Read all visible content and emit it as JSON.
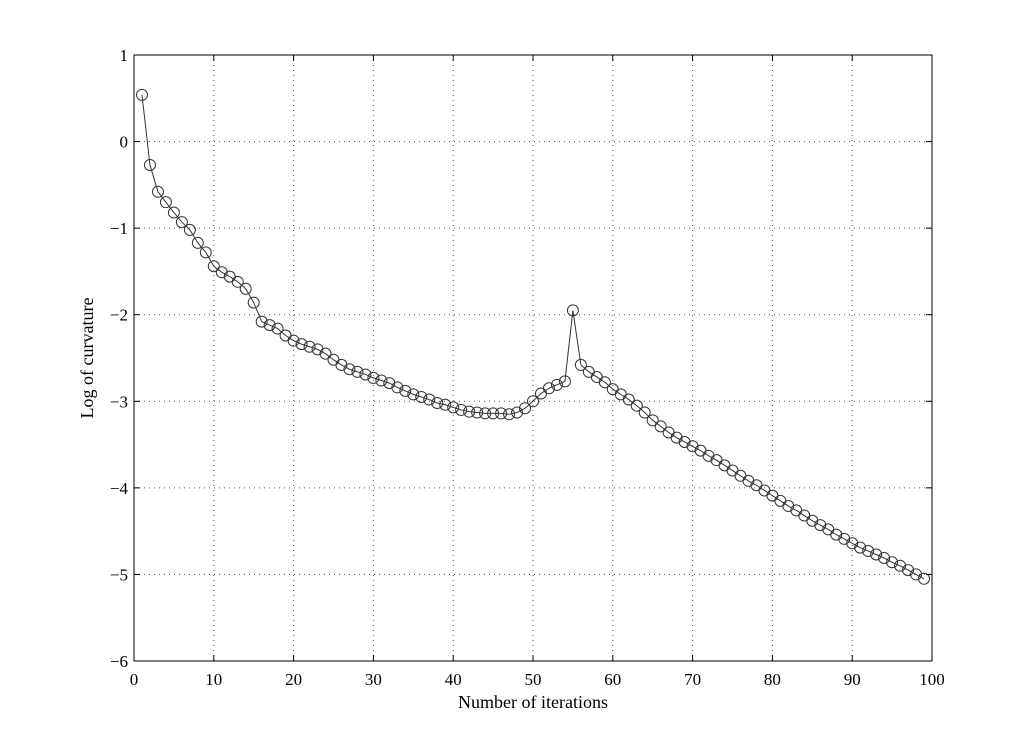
{
  "chart_data": {
    "type": "line",
    "title": "",
    "xlabel": "Number of iterations",
    "ylabel": "Log of curvature",
    "xlim": [
      0,
      100
    ],
    "ylim": [
      -6,
      1
    ],
    "xticks": [
      0,
      10,
      20,
      30,
      40,
      50,
      60,
      70,
      80,
      90,
      100
    ],
    "yticks": [
      1,
      0,
      -1,
      -2,
      -3,
      -4,
      -5,
      -6
    ],
    "xtick_labels": [
      "0",
      "10",
      "20",
      "30",
      "40",
      "50",
      "60",
      "70",
      "80",
      "90",
      "100"
    ],
    "ytick_labels": [
      "1",
      "0",
      "−1",
      "−2",
      "−3",
      "−4",
      "−5",
      "−6"
    ],
    "grid": "dotted",
    "marker": "open-circle",
    "line_color": "#333333",
    "x": [
      1,
      2,
      3,
      4,
      5,
      6,
      7,
      8,
      9,
      10,
      11,
      12,
      13,
      14,
      15,
      16,
      17,
      18,
      19,
      20,
      21,
      22,
      23,
      24,
      25,
      26,
      27,
      28,
      29,
      30,
      31,
      32,
      33,
      34,
      35,
      36,
      37,
      38,
      39,
      40,
      41,
      42,
      43,
      44,
      45,
      46,
      47,
      48,
      49,
      50,
      51,
      52,
      53,
      54,
      55,
      56,
      57,
      58,
      59,
      60,
      61,
      62,
      63,
      64,
      65,
      66,
      67,
      68,
      69,
      70,
      71,
      72,
      73,
      74,
      75,
      76,
      77,
      78,
      79,
      80,
      81,
      82,
      83,
      84,
      85,
      86,
      87,
      88,
      89,
      90,
      91,
      92,
      93,
      94,
      95,
      96,
      97,
      98,
      99
    ],
    "y": [
      0.54,
      -0.27,
      -0.58,
      -0.7,
      -0.82,
      -0.93,
      -1.02,
      -1.17,
      -1.28,
      -1.44,
      -1.51,
      -1.56,
      -1.62,
      -1.7,
      -1.86,
      -2.08,
      -2.12,
      -2.16,
      -2.24,
      -2.3,
      -2.34,
      -2.37,
      -2.4,
      -2.45,
      -2.52,
      -2.58,
      -2.63,
      -2.66,
      -2.69,
      -2.73,
      -2.76,
      -2.79,
      -2.84,
      -2.88,
      -2.92,
      -2.95,
      -2.98,
      -3.02,
      -3.04,
      -3.07,
      -3.1,
      -3.12,
      -3.13,
      -3.14,
      -3.14,
      -3.14,
      -3.15,
      -3.13,
      -3.08,
      -3.0,
      -2.91,
      -2.85,
      -2.81,
      -2.77,
      -1.95,
      -2.58,
      -2.66,
      -2.72,
      -2.78,
      -2.86,
      -2.92,
      -2.98,
      -3.05,
      -3.13,
      -3.22,
      -3.29,
      -3.36,
      -3.42,
      -3.47,
      -3.52,
      -3.57,
      -3.63,
      -3.68,
      -3.74,
      -3.8,
      -3.86,
      -3.92,
      -3.97,
      -4.03,
      -4.09,
      -4.15,
      -4.21,
      -4.26,
      -4.32,
      -4.38,
      -4.43,
      -4.48,
      -4.54,
      -4.59,
      -4.64,
      -4.69,
      -4.73,
      -4.77,
      -4.81,
      -4.86,
      -4.9,
      -4.95,
      -5.0,
      -5.05
    ]
  }
}
